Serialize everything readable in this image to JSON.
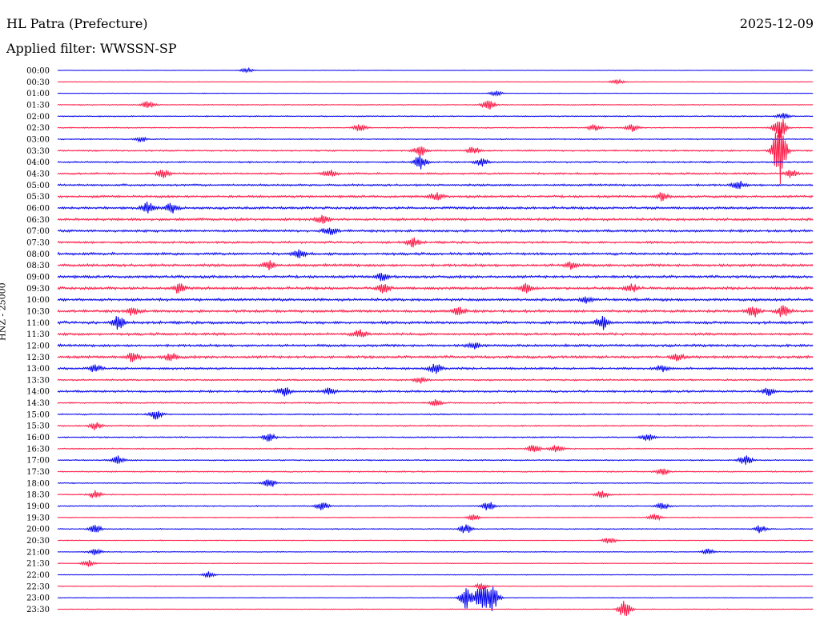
{
  "header": {
    "station": "HL Patra (Prefecture)",
    "date": "2025-12-09",
    "filter_label": "Applied filter: WWSSN-SP",
    "channel_label": "HNZ - 25000"
  },
  "colors": {
    "even_trace": "#0000ee",
    "odd_trace": "#ff1744"
  },
  "chart_data": {
    "type": "line",
    "title": "HL Patra (Prefecture)",
    "subtitle": "Applied filter: WWSSN-SP",
    "ylabel": "HNZ - 25000",
    "grid": false,
    "rows": [
      {
        "label": "00:00",
        "activity": 0.25,
        "events": [
          {
            "x": 0.25,
            "amp": 3
          }
        ]
      },
      {
        "label": "00:30",
        "activity": 0.3,
        "events": [
          {
            "x": 0.74,
            "amp": 3
          }
        ]
      },
      {
        "label": "01:00",
        "activity": 0.3,
        "events": [
          {
            "x": 0.58,
            "amp": 3
          }
        ]
      },
      {
        "label": "01:30",
        "activity": 0.45,
        "events": [
          {
            "x": 0.12,
            "amp": 5
          },
          {
            "x": 0.57,
            "amp": 7
          }
        ]
      },
      {
        "label": "02:00",
        "activity": 0.55,
        "events": [
          {
            "x": 0.96,
            "amp": 4
          }
        ]
      },
      {
        "label": "02:30",
        "activity": 0.5,
        "events": [
          {
            "x": 0.4,
            "amp": 5
          },
          {
            "x": 0.71,
            "amp": 4
          },
          {
            "x": 0.76,
            "amp": 5
          },
          {
            "x": 0.955,
            "amp": 16
          }
        ]
      },
      {
        "label": "03:00",
        "activity": 0.55,
        "events": [
          {
            "x": 0.11,
            "amp": 3
          }
        ]
      },
      {
        "label": "03:30",
        "activity": 0.75,
        "events": [
          {
            "x": 0.48,
            "amp": 6
          },
          {
            "x": 0.55,
            "amp": 5
          },
          {
            "x": 0.955,
            "amp": 42
          }
        ]
      },
      {
        "label": "04:00",
        "activity": 0.75,
        "events": [
          {
            "x": 0.56,
            "amp": 5
          },
          {
            "x": 0.48,
            "amp": 9
          }
        ]
      },
      {
        "label": "04:30",
        "activity": 0.9,
        "events": [
          {
            "x": 0.14,
            "amp": 5
          },
          {
            "x": 0.36,
            "amp": 5
          },
          {
            "x": 0.97,
            "amp": 5
          }
        ]
      },
      {
        "label": "05:00",
        "activity": 1.0,
        "events": [
          {
            "x": 0.9,
            "amp": 5
          }
        ]
      },
      {
        "label": "05:30",
        "activity": 1.1,
        "events": [
          {
            "x": 0.5,
            "amp": 5
          },
          {
            "x": 0.8,
            "amp": 5
          }
        ]
      },
      {
        "label": "06:00",
        "activity": 1.2,
        "events": [
          {
            "x": 0.12,
            "amp": 7
          },
          {
            "x": 0.15,
            "amp": 6
          }
        ]
      },
      {
        "label": "06:30",
        "activity": 1.25,
        "events": [
          {
            "x": 0.35,
            "amp": 5
          }
        ]
      },
      {
        "label": "07:00",
        "activity": 1.15,
        "events": [
          {
            "x": 0.36,
            "amp": 6
          }
        ]
      },
      {
        "label": "07:30",
        "activity": 1.05,
        "events": [
          {
            "x": 0.47,
            "amp": 6
          }
        ]
      },
      {
        "label": "08:00",
        "activity": 1.2,
        "events": [
          {
            "x": 0.32,
            "amp": 5
          }
        ]
      },
      {
        "label": "08:30",
        "activity": 1.3,
        "events": [
          {
            "x": 0.28,
            "amp": 6
          },
          {
            "x": 0.68,
            "amp": 5
          }
        ]
      },
      {
        "label": "09:00",
        "activity": 1.25,
        "events": [
          {
            "x": 0.43,
            "amp": 5
          }
        ]
      },
      {
        "label": "09:30",
        "activity": 1.3,
        "events": [
          {
            "x": 0.16,
            "amp": 6
          },
          {
            "x": 0.43,
            "amp": 6
          },
          {
            "x": 0.62,
            "amp": 6
          },
          {
            "x": 0.76,
            "amp": 5
          }
        ]
      },
      {
        "label": "10:00",
        "activity": 1.3,
        "events": [
          {
            "x": 0.7,
            "amp": 4
          }
        ]
      },
      {
        "label": "10:30",
        "activity": 1.25,
        "events": [
          {
            "x": 0.1,
            "amp": 5
          },
          {
            "x": 0.53,
            "amp": 6
          },
          {
            "x": 0.92,
            "amp": 7
          },
          {
            "x": 0.96,
            "amp": 8
          }
        ]
      },
      {
        "label": "11:00",
        "activity": 1.3,
        "events": [
          {
            "x": 0.08,
            "amp": 8
          },
          {
            "x": 0.72,
            "amp": 8
          }
        ]
      },
      {
        "label": "11:30",
        "activity": 1.2,
        "events": [
          {
            "x": 0.4,
            "amp": 5
          }
        ]
      },
      {
        "label": "12:00",
        "activity": 1.2,
        "events": [
          {
            "x": 0.55,
            "amp": 4
          }
        ]
      },
      {
        "label": "12:30",
        "activity": 1.25,
        "events": [
          {
            "x": 0.1,
            "amp": 6
          },
          {
            "x": 0.15,
            "amp": 5
          },
          {
            "x": 0.82,
            "amp": 4
          }
        ]
      },
      {
        "label": "13:00",
        "activity": 1.05,
        "events": [
          {
            "x": 0.05,
            "amp": 5
          },
          {
            "x": 0.5,
            "amp": 6
          },
          {
            "x": 0.8,
            "amp": 4
          }
        ]
      },
      {
        "label": "13:30",
        "activity": 0.8,
        "events": [
          {
            "x": 0.48,
            "amp": 4
          }
        ]
      },
      {
        "label": "14:00",
        "activity": 1.0,
        "events": [
          {
            "x": 0.3,
            "amp": 6
          },
          {
            "x": 0.36,
            "amp": 5
          },
          {
            "x": 0.94,
            "amp": 5
          }
        ]
      },
      {
        "label": "14:30",
        "activity": 0.7,
        "events": [
          {
            "x": 0.5,
            "amp": 4
          }
        ]
      },
      {
        "label": "15:00",
        "activity": 0.65,
        "events": [
          {
            "x": 0.13,
            "amp": 6
          }
        ]
      },
      {
        "label": "15:30",
        "activity": 0.65,
        "events": [
          {
            "x": 0.05,
            "amp": 5
          }
        ]
      },
      {
        "label": "16:00",
        "activity": 0.6,
        "events": [
          {
            "x": 0.28,
            "amp": 5
          },
          {
            "x": 0.78,
            "amp": 5
          }
        ]
      },
      {
        "label": "16:30",
        "activity": 0.6,
        "events": [
          {
            "x": 0.63,
            "amp": 6
          },
          {
            "x": 0.66,
            "amp": 5
          }
        ]
      },
      {
        "label": "17:00",
        "activity": 0.6,
        "events": [
          {
            "x": 0.08,
            "amp": 5
          },
          {
            "x": 0.91,
            "amp": 6
          }
        ]
      },
      {
        "label": "17:30",
        "activity": 0.6,
        "events": [
          {
            "x": 0.8,
            "amp": 4
          }
        ]
      },
      {
        "label": "18:00",
        "activity": 0.5,
        "events": [
          {
            "x": 0.28,
            "amp": 6
          }
        ]
      },
      {
        "label": "18:30",
        "activity": 0.55,
        "events": [
          {
            "x": 0.05,
            "amp": 5
          },
          {
            "x": 0.72,
            "amp": 5
          }
        ]
      },
      {
        "label": "19:00",
        "activity": 0.55,
        "events": [
          {
            "x": 0.35,
            "amp": 5
          },
          {
            "x": 0.57,
            "amp": 6
          },
          {
            "x": 0.8,
            "amp": 4
          }
        ]
      },
      {
        "label": "19:30",
        "activity": 0.45,
        "events": [
          {
            "x": 0.55,
            "amp": 4
          },
          {
            "x": 0.79,
            "amp": 4
          }
        ]
      },
      {
        "label": "20:00",
        "activity": 0.5,
        "events": [
          {
            "x": 0.05,
            "amp": 5
          },
          {
            "x": 0.54,
            "amp": 6
          },
          {
            "x": 0.93,
            "amp": 5
          }
        ]
      },
      {
        "label": "20:30",
        "activity": 0.4,
        "events": [
          {
            "x": 0.73,
            "amp": 4
          }
        ]
      },
      {
        "label": "21:00",
        "activity": 0.4,
        "events": [
          {
            "x": 0.05,
            "amp": 4
          },
          {
            "x": 0.86,
            "amp": 4
          }
        ]
      },
      {
        "label": "21:30",
        "activity": 0.35,
        "events": [
          {
            "x": 0.04,
            "amp": 4
          }
        ]
      },
      {
        "label": "22:00",
        "activity": 0.35,
        "events": [
          {
            "x": 0.2,
            "amp": 4
          }
        ]
      },
      {
        "label": "22:30",
        "activity": 0.35,
        "events": [
          {
            "x": 0.56,
            "amp": 4
          }
        ]
      },
      {
        "label": "23:00",
        "activity": 0.35,
        "events": [
          {
            "x": 0.54,
            "amp": 14
          },
          {
            "x": 0.56,
            "amp": 16
          },
          {
            "x": 0.575,
            "amp": 18
          }
        ]
      },
      {
        "label": "23:30",
        "activity": 0.35,
        "events": [
          {
            "x": 0.75,
            "amp": 12
          }
        ]
      }
    ]
  }
}
